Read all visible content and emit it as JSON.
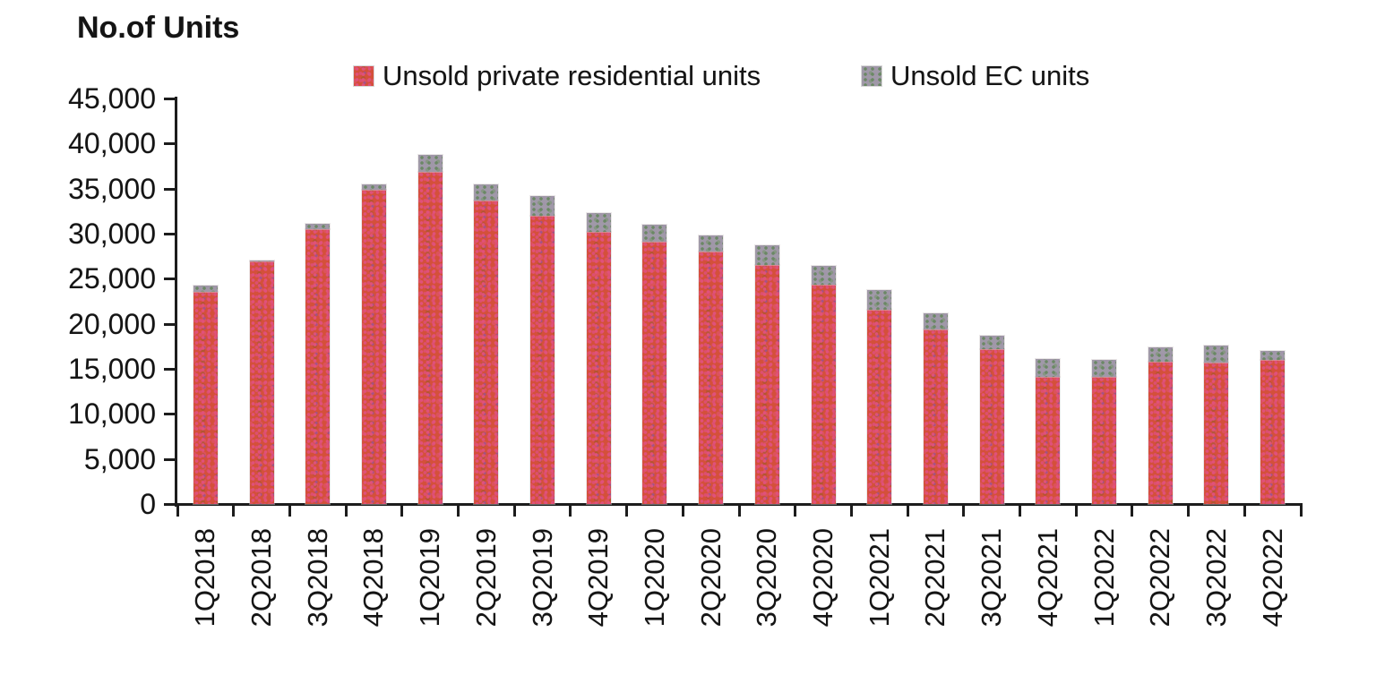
{
  "chart": {
    "title": "No.of Units",
    "background": "#ffffff",
    "text_color": "#141414",
    "axis_color": "#1c1c1c"
  },
  "chart_data": {
    "type": "bar",
    "stacked": true,
    "title": "No.of Units",
    "xlabel": "",
    "ylabel": "No.of Units",
    "ylim": [
      0,
      45000
    ],
    "ytick_step": 5000,
    "ytick_labels": [
      "0",
      "5,000",
      "10,000",
      "15,000",
      "20,000",
      "25,000",
      "30,000",
      "35,000",
      "40,000",
      "45,000"
    ],
    "grid": false,
    "legend_position": "top",
    "categories": [
      "1Q2018",
      "2Q2018",
      "3Q2018",
      "4Q2018",
      "1Q2019",
      "2Q2019",
      "3Q2019",
      "4Q2019",
      "1Q2020",
      "2Q2020",
      "3Q2020",
      "4Q2020",
      "1Q2021",
      "2Q2021",
      "3Q2021",
      "4Q2021",
      "1Q2022",
      "2Q2022",
      "3Q2022",
      "4Q2022"
    ],
    "series": [
      {
        "name": "Unsold private residential units",
        "color": "#d4503a",
        "values": [
          23514,
          26943,
          30467,
          34824,
          36839,
          33673,
          31948,
          30162,
          29149,
          27977,
          26483,
          24296,
          21602,
          19384,
          17140,
          14154,
          14087,
          15805,
          15677,
          16024
        ]
      },
      {
        "name": "Unsold EC units",
        "color": "#a099a8",
        "values": [
          700,
          100,
          650,
          600,
          1900,
          1800,
          2200,
          2150,
          1800,
          1850,
          2250,
          2100,
          2100,
          1800,
          1500,
          1950,
          1900,
          1600,
          1900,
          1000
        ]
      }
    ]
  }
}
